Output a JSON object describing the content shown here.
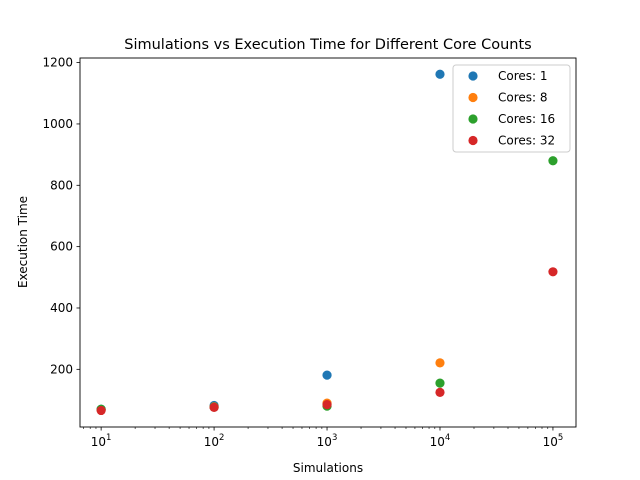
{
  "chart_data": {
    "type": "scatter",
    "title": "Simulations vs Execution Time for Different Core Counts",
    "xlabel": "Simulations",
    "ylabel": "Execution Time",
    "xscale": "log",
    "xlim": [
      6.5,
      160000
    ],
    "ylim": [
      12,
      1215
    ],
    "x_ticks": [
      {
        "value": 10,
        "base": "10",
        "exp": "1"
      },
      {
        "value": 100,
        "base": "10",
        "exp": "2"
      },
      {
        "value": 1000,
        "base": "10",
        "exp": "3"
      },
      {
        "value": 10000,
        "base": "10",
        "exp": "4"
      },
      {
        "value": 100000,
        "base": "10",
        "exp": "5"
      }
    ],
    "y_ticks": [
      200,
      400,
      600,
      800,
      1000,
      1200
    ],
    "grid": false,
    "legend_position": "top-right",
    "series": [
      {
        "name": "Cores: 1",
        "color": "#1f77b4",
        "points": [
          [
            10,
            70
          ],
          [
            100,
            82
          ],
          [
            1000,
            181
          ],
          [
            10000,
            1162
          ]
        ]
      },
      {
        "name": "Cores: 8",
        "color": "#ff7f0e",
        "points": [
          [
            10,
            68
          ],
          [
            100,
            78
          ],
          [
            1000,
            90
          ],
          [
            10000,
            221
          ]
        ]
      },
      {
        "name": "Cores: 16",
        "color": "#2ca02c",
        "points": [
          [
            10,
            70
          ],
          [
            100,
            77
          ],
          [
            1000,
            80
          ],
          [
            10000,
            155
          ],
          [
            100000,
            880
          ]
        ]
      },
      {
        "name": "Cores: 32",
        "color": "#d62728",
        "points": [
          [
            10,
            66
          ],
          [
            100,
            76
          ],
          [
            1000,
            85
          ],
          [
            10000,
            125
          ],
          [
            100000,
            518
          ]
        ]
      }
    ]
  }
}
